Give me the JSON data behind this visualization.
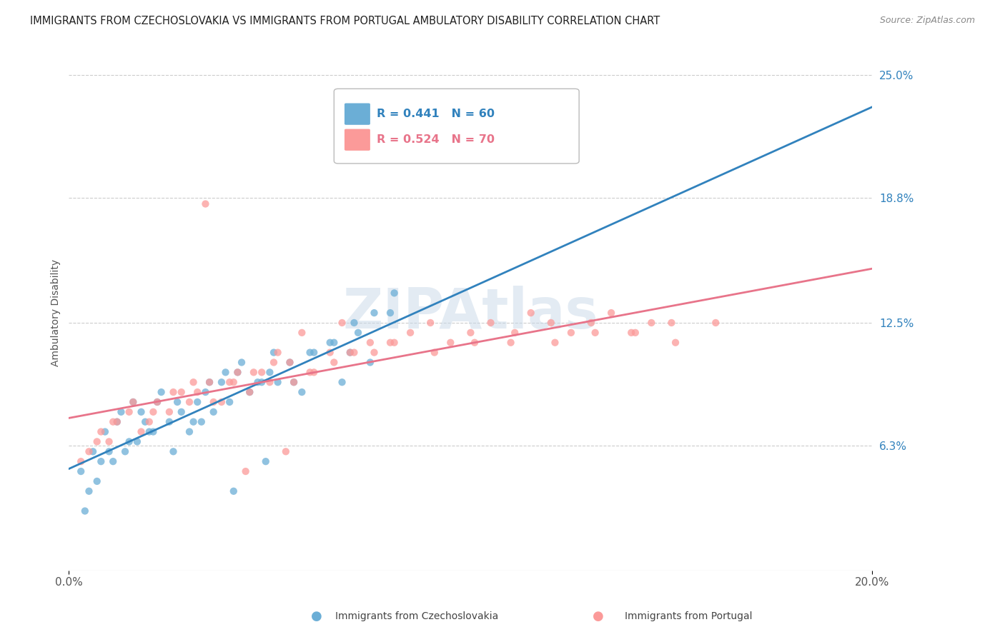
{
  "title": "IMMIGRANTS FROM CZECHOSLOVAKIA VS IMMIGRANTS FROM PORTUGAL AMBULATORY DISABILITY CORRELATION CHART",
  "source": "Source: ZipAtlas.com",
  "ylabel": "Ambulatory Disability",
  "xlim": [
    0.0,
    0.2
  ],
  "ylim": [
    0.0,
    0.26
  ],
  "ytick_labels": [
    "6.3%",
    "12.5%",
    "18.8%",
    "25.0%"
  ],
  "ytick_values": [
    0.063,
    0.125,
    0.188,
    0.25
  ],
  "color_czech": "#6baed6",
  "color_portugal": "#fb9a99",
  "R_czech": 0.441,
  "N_czech": 60,
  "R_portugal": 0.524,
  "N_portugal": 70,
  "line_color_czech": "#3182bd",
  "line_color_portugal": "#e8748a",
  "watermark": "ZIPAtlas",
  "background_color": "#ffffff",
  "grid_color": "#cccccc",
  "legend_label_czech": "Immigrants from Czechoslovakia",
  "legend_label_portugal": "Immigrants from Portugal",
  "scatter_czech_x": [
    0.005,
    0.008,
    0.01,
    0.012,
    0.015,
    0.018,
    0.02,
    0.022,
    0.025,
    0.028,
    0.03,
    0.032,
    0.034,
    0.036,
    0.038,
    0.04,
    0.042,
    0.045,
    0.048,
    0.05,
    0.052,
    0.055,
    0.058,
    0.06,
    0.065,
    0.068,
    0.07,
    0.072,
    0.075,
    0.08,
    0.003,
    0.006,
    0.009,
    0.013,
    0.016,
    0.019,
    0.023,
    0.027,
    0.031,
    0.035,
    0.039,
    0.043,
    0.047,
    0.051,
    0.056,
    0.061,
    0.066,
    0.071,
    0.076,
    0.081,
    0.004,
    0.007,
    0.011,
    0.014,
    0.017,
    0.021,
    0.026,
    0.033,
    0.041,
    0.049
  ],
  "scatter_czech_y": [
    0.04,
    0.055,
    0.06,
    0.075,
    0.065,
    0.08,
    0.07,
    0.085,
    0.075,
    0.08,
    0.07,
    0.085,
    0.09,
    0.08,
    0.095,
    0.085,
    0.1,
    0.09,
    0.095,
    0.1,
    0.095,
    0.105,
    0.09,
    0.11,
    0.115,
    0.095,
    0.11,
    0.12,
    0.105,
    0.13,
    0.05,
    0.06,
    0.07,
    0.08,
    0.085,
    0.075,
    0.09,
    0.085,
    0.075,
    0.095,
    0.1,
    0.105,
    0.095,
    0.11,
    0.095,
    0.11,
    0.115,
    0.125,
    0.13,
    0.14,
    0.03,
    0.045,
    0.055,
    0.06,
    0.065,
    0.07,
    0.06,
    0.075,
    0.04,
    0.055
  ],
  "scatter_portugal_x": [
    0.005,
    0.008,
    0.01,
    0.012,
    0.015,
    0.018,
    0.02,
    0.022,
    0.025,
    0.028,
    0.03,
    0.032,
    0.035,
    0.038,
    0.04,
    0.042,
    0.045,
    0.048,
    0.05,
    0.052,
    0.055,
    0.058,
    0.06,
    0.065,
    0.068,
    0.07,
    0.075,
    0.08,
    0.085,
    0.09,
    0.095,
    0.1,
    0.105,
    0.11,
    0.115,
    0.12,
    0.125,
    0.13,
    0.135,
    0.14,
    0.145,
    0.15,
    0.003,
    0.007,
    0.011,
    0.016,
    0.021,
    0.026,
    0.031,
    0.036,
    0.041,
    0.046,
    0.051,
    0.056,
    0.061,
    0.066,
    0.071,
    0.076,
    0.081,
    0.091,
    0.101,
    0.111,
    0.121,
    0.131,
    0.141,
    0.151,
    0.161,
    0.034,
    0.044,
    0.054
  ],
  "scatter_portugal_y": [
    0.06,
    0.07,
    0.065,
    0.075,
    0.08,
    0.07,
    0.075,
    0.085,
    0.08,
    0.09,
    0.085,
    0.09,
    0.095,
    0.085,
    0.095,
    0.1,
    0.09,
    0.1,
    0.095,
    0.11,
    0.105,
    0.12,
    0.1,
    0.11,
    0.125,
    0.11,
    0.115,
    0.115,
    0.12,
    0.125,
    0.115,
    0.12,
    0.125,
    0.115,
    0.13,
    0.125,
    0.12,
    0.125,
    0.13,
    0.12,
    0.125,
    0.125,
    0.055,
    0.065,
    0.075,
    0.085,
    0.08,
    0.09,
    0.095,
    0.085,
    0.095,
    0.1,
    0.105,
    0.095,
    0.1,
    0.105,
    0.11,
    0.11,
    0.115,
    0.11,
    0.115,
    0.12,
    0.115,
    0.12,
    0.12,
    0.115,
    0.125,
    0.185,
    0.05,
    0.06
  ]
}
